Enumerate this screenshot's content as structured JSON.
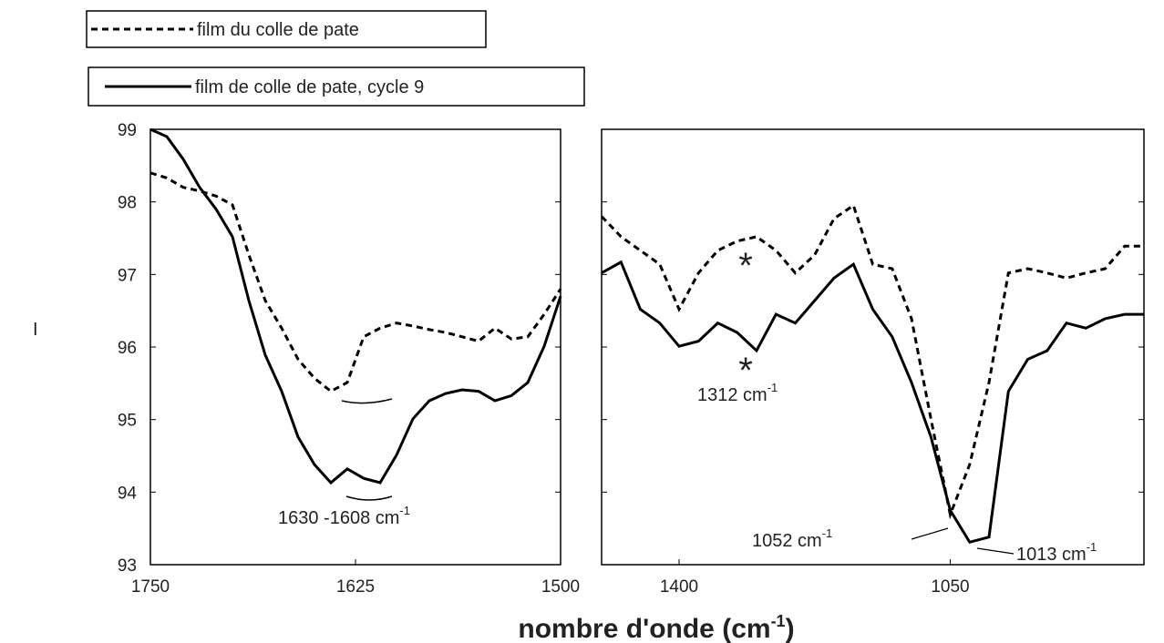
{
  "chart_data": {
    "type": "line",
    "ylabel": "I",
    "xlabel": [
      "nombre d'onde (cm",
      "-1",
      ")"
    ],
    "ylim": [
      93,
      99
    ],
    "yticks": [
      93,
      94,
      95,
      96,
      97,
      98,
      99
    ],
    "series": [
      {
        "name": "film du colle de pate",
        "color": "#000000",
        "dash": true
      },
      {
        "name": "film de colle de pate, cycle 9",
        "color": "#000000",
        "dash": false
      }
    ],
    "panels": [
      {
        "xlim": [
          1750,
          1500
        ],
        "xticks": [
          1750,
          1625,
          1500
        ],
        "x": [
          1750,
          1740,
          1730,
          1720,
          1710,
          1700,
          1690,
          1680,
          1670,
          1660,
          1650,
          1640,
          1630,
          1620,
          1610,
          1600,
          1590,
          1580,
          1570,
          1560,
          1550,
          1540,
          1530,
          1520,
          1510,
          1500
        ],
        "series": [
          {
            "values": [
              98.4,
              98.33,
              98.2,
              98.15,
              98.08,
              97.96,
              97.27,
              96.64,
              96.26,
              95.83,
              95.57,
              95.39,
              95.51,
              96.14,
              96.26,
              96.33,
              96.29,
              96.24,
              96.2,
              96.14,
              96.08,
              96.26,
              96.11,
              96.14,
              96.45,
              96.8
            ]
          },
          {
            "values": [
              99.0,
              98.9,
              98.59,
              98.2,
              97.9,
              97.52,
              96.64,
              95.89,
              95.39,
              94.76,
              94.38,
              94.13,
              94.32,
              94.19,
              94.13,
              94.51,
              95.01,
              95.26,
              95.36,
              95.41,
              95.39,
              95.26,
              95.33,
              95.51,
              96.01,
              96.7
            ]
          }
        ],
        "annotations": [
          {
            "text": "1630 -1608 cm",
            "sup": "-1"
          }
        ]
      },
      {
        "xlim": [
          1500,
          800
        ],
        "xticks": [
          1400,
          1050
        ],
        "x": [
          1500,
          1475,
          1450,
          1425,
          1400,
          1375,
          1350,
          1325,
          1300,
          1275,
          1250,
          1225,
          1200,
          1175,
          1150,
          1125,
          1100,
          1075,
          1050,
          1025,
          1000,
          975,
          950,
          925,
          900,
          875,
          850,
          825,
          800
        ],
        "series": [
          {
            "values": [
              97.8,
              97.52,
              97.33,
              97.14,
              96.52,
              97.02,
              97.33,
              97.46,
              97.52,
              97.33,
              97.02,
              97.27,
              97.77,
              97.95,
              97.14,
              97.08,
              96.39,
              95.01,
              93.69,
              94.38,
              95.51,
              97.02,
              97.08,
              97.02,
              96.95,
              97.02,
              97.08,
              97.39,
              97.39
            ]
          },
          {
            "values": [
              97.02,
              97.17,
              96.52,
              96.33,
              96.01,
              96.08,
              96.33,
              96.2,
              95.95,
              96.45,
              96.33,
              96.64,
              96.95,
              97.14,
              96.52,
              96.14,
              95.51,
              94.76,
              93.75,
              93.31,
              93.38,
              95.39,
              95.83,
              95.95,
              96.33,
              96.26,
              96.39,
              96.45,
              96.45
            ]
          }
        ],
        "annotations": [
          {
            "text": "*"
          },
          {
            "text": "*"
          },
          {
            "text": "1312 cm",
            "sup": "-1"
          },
          {
            "text": "1052 cm",
            "sup": "-1"
          },
          {
            "text": "1013 cm",
            "sup": "-1"
          }
        ]
      }
    ]
  }
}
